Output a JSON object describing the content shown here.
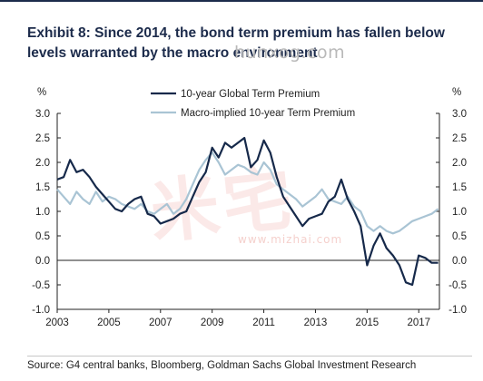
{
  "title": "Exhibit 8: Since 2014, the bond term premium has fallen below levels warranted by the macro environment",
  "watermark": {
    "url": "hunxog.com",
    "stamp_url": "www.mizhai.com",
    "stamp_text": "米宅"
  },
  "source": "Source: G4 central banks, Bloomberg, Goldman Sachs Global Investment Research",
  "colors": {
    "term_premium": "#16294a",
    "macro_implied": "#a9c4d4",
    "axis": "#222222",
    "title": "#1c2b4b"
  },
  "chart_data": {
    "type": "line",
    "ylabel_left": "%",
    "ylabel_right": "%",
    "ylim": [
      -1.0,
      3.0
    ],
    "yticks": [
      "3.0",
      "2.5",
      "2.0",
      "1.5",
      "1.0",
      "0.5",
      "0.0",
      "-0.5",
      "-1.0"
    ],
    "xlim": [
      2003.0,
      2017.8
    ],
    "xticks": [
      "2003",
      "2005",
      "2007",
      "2009",
      "2011",
      "2013",
      "2015",
      "2017"
    ],
    "legend_position": "top-center",
    "series": [
      {
        "name": "10-year Global Term Premium",
        "x": [
          2003.0,
          2003.25,
          2003.5,
          2003.75,
          2004.0,
          2004.25,
          2004.5,
          2004.75,
          2005.0,
          2005.25,
          2005.5,
          2005.75,
          2006.0,
          2006.25,
          2006.5,
          2006.75,
          2007.0,
          2007.25,
          2007.5,
          2007.75,
          2008.0,
          2008.25,
          2008.5,
          2008.75,
          2009.0,
          2009.25,
          2009.5,
          2009.75,
          2010.0,
          2010.25,
          2010.5,
          2010.75,
          2011.0,
          2011.25,
          2011.5,
          2011.75,
          2012.0,
          2012.25,
          2012.5,
          2012.75,
          2013.0,
          2013.25,
          2013.5,
          2013.75,
          2014.0,
          2014.25,
          2014.5,
          2014.75,
          2015.0,
          2015.25,
          2015.5,
          2015.75,
          2016.0,
          2016.25,
          2016.5,
          2016.75,
          2017.0,
          2017.25,
          2017.5,
          2017.75
        ],
        "y": [
          1.65,
          1.7,
          2.05,
          1.8,
          1.85,
          1.7,
          1.5,
          1.35,
          1.2,
          1.05,
          1.0,
          1.15,
          1.25,
          1.3,
          0.95,
          0.9,
          0.75,
          0.8,
          0.85,
          0.95,
          1.0,
          1.3,
          1.6,
          1.8,
          2.3,
          2.1,
          2.4,
          2.3,
          2.4,
          2.5,
          1.9,
          2.05,
          2.45,
          2.2,
          1.7,
          1.3,
          1.1,
          0.9,
          0.7,
          0.85,
          0.9,
          0.95,
          1.2,
          1.3,
          1.65,
          1.25,
          1.0,
          0.7,
          -0.1,
          0.3,
          0.55,
          0.25,
          0.1,
          -0.1,
          -0.45,
          -0.5,
          0.1,
          0.05,
          -0.05,
          -0.05
        ]
      },
      {
        "name": "Macro-implied 10-year Term Premium",
        "x": [
          2003.0,
          2003.25,
          2003.5,
          2003.75,
          2004.0,
          2004.25,
          2004.5,
          2004.75,
          2005.0,
          2005.25,
          2005.5,
          2005.75,
          2006.0,
          2006.25,
          2006.5,
          2006.75,
          2007.0,
          2007.25,
          2007.5,
          2007.75,
          2008.0,
          2008.25,
          2008.5,
          2008.75,
          2009.0,
          2009.25,
          2009.5,
          2009.75,
          2010.0,
          2010.25,
          2010.5,
          2010.75,
          2011.0,
          2011.25,
          2011.5,
          2011.75,
          2012.0,
          2012.25,
          2012.5,
          2012.75,
          2013.0,
          2013.25,
          2013.5,
          2013.75,
          2014.0,
          2014.25,
          2014.5,
          2014.75,
          2015.0,
          2015.25,
          2015.5,
          2015.75,
          2016.0,
          2016.25,
          2016.5,
          2016.75,
          2017.0,
          2017.25,
          2017.5,
          2017.75
        ],
        "y": [
          1.45,
          1.3,
          1.15,
          1.4,
          1.25,
          1.15,
          1.4,
          1.2,
          1.3,
          1.25,
          1.15,
          1.1,
          1.05,
          1.15,
          1.0,
          0.95,
          1.05,
          1.15,
          0.95,
          1.05,
          1.25,
          1.55,
          1.85,
          2.05,
          2.2,
          2.0,
          1.75,
          1.85,
          1.95,
          1.9,
          1.8,
          1.75,
          2.0,
          1.85,
          1.55,
          1.45,
          1.35,
          1.25,
          1.1,
          1.2,
          1.3,
          1.45,
          1.25,
          1.2,
          1.15,
          1.3,
          1.1,
          1.0,
          0.7,
          0.6,
          0.7,
          0.6,
          0.55,
          0.6,
          0.7,
          0.8,
          0.85,
          0.9,
          0.95,
          1.05
        ]
      }
    ]
  }
}
